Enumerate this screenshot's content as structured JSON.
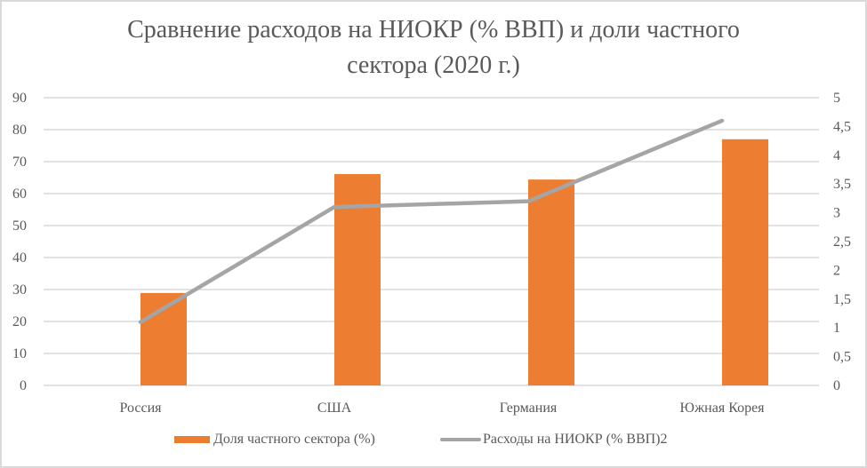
{
  "chart_data": {
    "type": "bar+line",
    "title": "Сравнение расходов  на НИОКР  (% ВВП) и доли частного сектора (2020 г.)",
    "title_lines": [
      "Сравнение расходов  на НИОКР  (% ВВП) и доли частного",
      "сектора (2020 г.)"
    ],
    "categories": [
      "Россия",
      "США",
      "Германия",
      "Южная Корея"
    ],
    "series": [
      {
        "name": "Доля частного сектора (%)",
        "type": "bar",
        "axis": "left",
        "color": "#ed7d31",
        "values": [
          28.9,
          66.1,
          64.4,
          77.0
        ]
      },
      {
        "name": "Расходы на НИОКР (% ВВП)2",
        "type": "line",
        "axis": "right",
        "color": "#a5a5a5",
        "values": [
          1.1,
          3.1,
          3.2,
          4.6
        ]
      }
    ],
    "y_left": {
      "ylim": [
        0,
        90
      ],
      "ticks": [
        "0",
        "10",
        "20",
        "30",
        "40",
        "50",
        "60",
        "70",
        "80",
        "90"
      ]
    },
    "y_right": {
      "ylim": [
        0,
        5
      ],
      "ticks": [
        "0",
        "0,5",
        "1",
        "1,5",
        "2",
        "2,5",
        "3",
        "3,5",
        "4",
        "4,5",
        "5"
      ]
    },
    "xlabel": "",
    "ylabel": "",
    "grid": true,
    "legend_position": "bottom"
  }
}
